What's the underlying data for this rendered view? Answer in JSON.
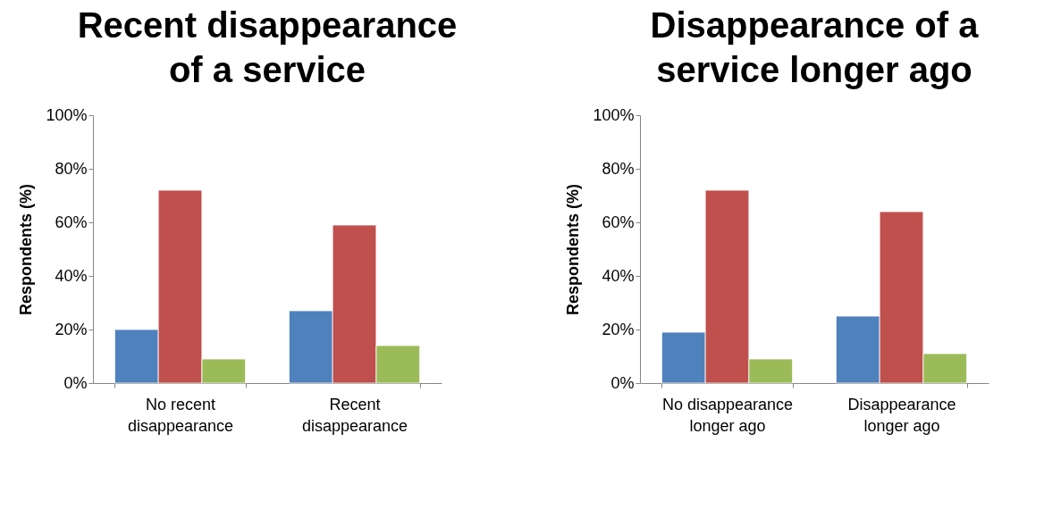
{
  "chart_data": [
    {
      "type": "bar",
      "title": "Recent disappearance of a service",
      "ylabel": "Respondents (%)",
      "categories": [
        "No recent disappearance",
        "Recent disappearance"
      ],
      "series": [
        {
          "color": "#4f81bd",
          "values": [
            20,
            27
          ]
        },
        {
          "color": "#c0504d",
          "values": [
            72,
            59
          ]
        },
        {
          "color": "#9bbb59",
          "values": [
            9,
            14
          ]
        }
      ],
      "ylim": [
        0,
        100
      ],
      "yticks": [
        {
          "value": 0,
          "label": "0%"
        },
        {
          "value": 20,
          "label": "20%"
        },
        {
          "value": 40,
          "label": "40%"
        },
        {
          "value": 60,
          "label": "60%"
        },
        {
          "value": 80,
          "label": "80%"
        },
        {
          "value": 100,
          "label": "100%"
        }
      ],
      "grid": false,
      "legend": false
    },
    {
      "type": "bar",
      "title": "Disappearance of a service longer ago",
      "ylabel": "Respondents (%)",
      "categories": [
        "No disappearance longer ago",
        "Disappearance longer ago"
      ],
      "series": [
        {
          "color": "#4f81bd",
          "values": [
            19,
            25
          ]
        },
        {
          "color": "#c0504d",
          "values": [
            72,
            64
          ]
        },
        {
          "color": "#9bbb59",
          "values": [
            9,
            11
          ]
        }
      ],
      "ylim": [
        0,
        100
      ],
      "yticks": [
        {
          "value": 0,
          "label": "0%"
        },
        {
          "value": 20,
          "label": "20%"
        },
        {
          "value": 40,
          "label": "40%"
        },
        {
          "value": 60,
          "label": "60%"
        },
        {
          "value": 80,
          "label": "80%"
        },
        {
          "value": 100,
          "label": "100%"
        }
      ],
      "grid": false,
      "legend": false
    }
  ]
}
